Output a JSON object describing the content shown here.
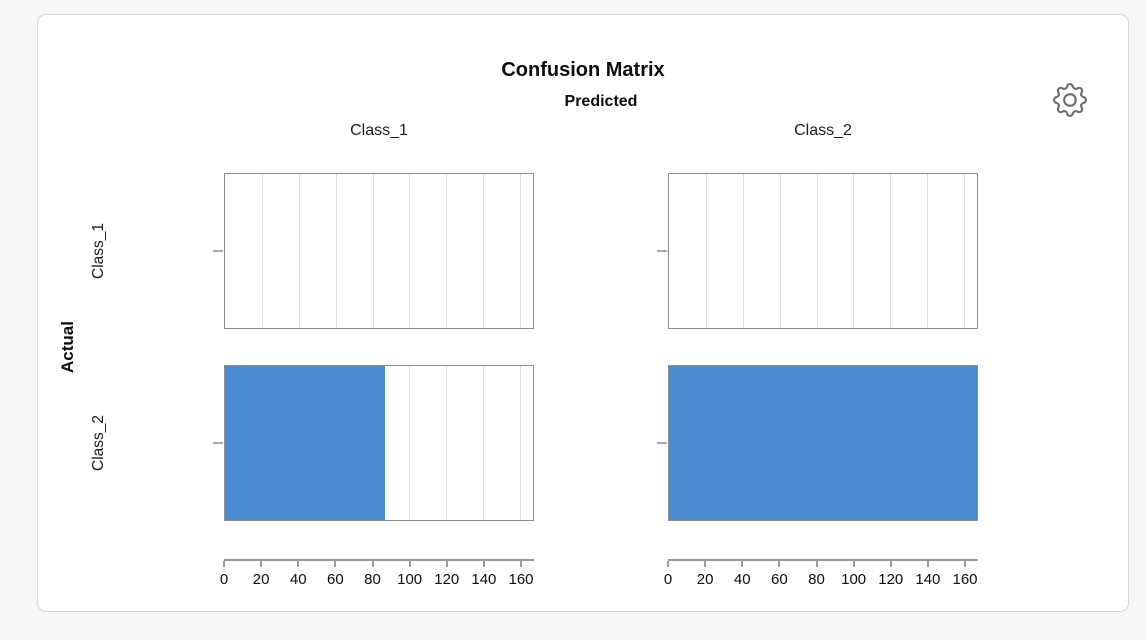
{
  "page": {
    "background_color": "#f7f7f7"
  },
  "card": {
    "background_color": "#ffffff",
    "border_color": "#d6d6d6"
  },
  "toolbar": {
    "settings_icon": "gear-icon"
  },
  "chart_data": {
    "type": "bar",
    "title": "Confusion Matrix",
    "x_group_label": "Predicted",
    "y_group_label": "Actual",
    "columns": [
      "Class_1",
      "Class_2"
    ],
    "rows": [
      "Class_1",
      "Class_2"
    ],
    "matrix": [
      [
        0,
        0
      ],
      [
        87,
        167
      ]
    ],
    "x_ticks": [
      0,
      20,
      40,
      60,
      80,
      100,
      120,
      140,
      160
    ],
    "x_max": 167,
    "grid": true,
    "legend_position": "none",
    "bar_color": "#4a8bd2",
    "gridline_color": "#dcdcdc",
    "panel_border_color": "#8e8e8e",
    "axis_color": "#9a9a9a"
  }
}
